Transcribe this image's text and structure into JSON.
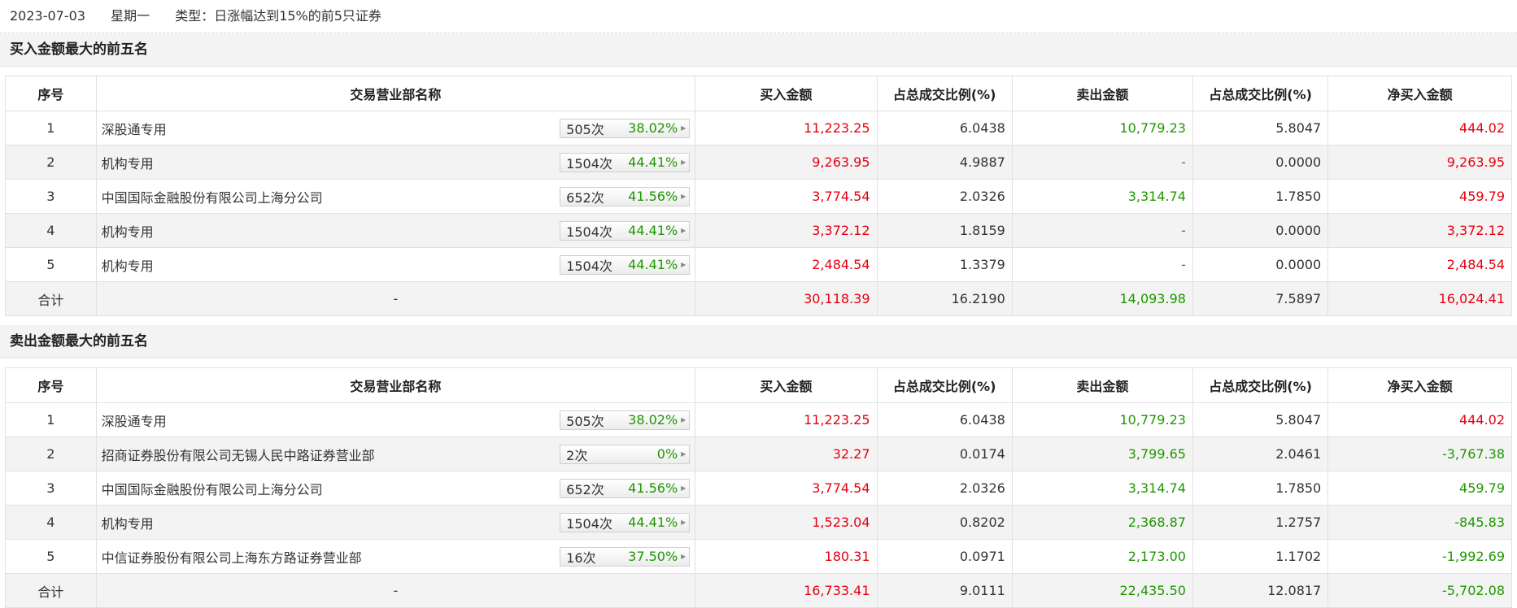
{
  "info": {
    "date": "2023-07-03",
    "weekday": "星期一",
    "type_label": "类型：日涨幅达到15%的前5只证券"
  },
  "headers": [
    "序号",
    "交易营业部名称",
    "买入金额",
    "占总成交比例(%)",
    "卖出金额",
    "占总成交比例(%)",
    "净买入金额"
  ],
  "sections": [
    {
      "title": "买入金额最大的前五名",
      "rows": [
        {
          "idx": "1",
          "name": "深股通专用",
          "count": "505次",
          "pct": "38.02%",
          "buy": "11,223.25",
          "buy_ratio": "6.0438",
          "sell": "10,779.23",
          "sell_ratio": "5.8047",
          "net": "444.02",
          "net_color": "red"
        },
        {
          "idx": "2",
          "name": "机构专用",
          "count": "1504次",
          "pct": "44.41%",
          "buy": "9,263.95",
          "buy_ratio": "4.9887",
          "sell": "-",
          "sell_ratio": "0.0000",
          "net": "9,263.95",
          "net_color": "red"
        },
        {
          "idx": "3",
          "name": "中国国际金融股份有限公司上海分公司",
          "count": "652次",
          "pct": "41.56%",
          "buy": "3,774.54",
          "buy_ratio": "2.0326",
          "sell": "3,314.74",
          "sell_ratio": "1.7850",
          "net": "459.79",
          "net_color": "red"
        },
        {
          "idx": "4",
          "name": "机构专用",
          "count": "1504次",
          "pct": "44.41%",
          "buy": "3,372.12",
          "buy_ratio": "1.8159",
          "sell": "-",
          "sell_ratio": "0.0000",
          "net": "3,372.12",
          "net_color": "red"
        },
        {
          "idx": "5",
          "name": "机构专用",
          "count": "1504次",
          "pct": "44.41%",
          "buy": "2,484.54",
          "buy_ratio": "1.3379",
          "sell": "-",
          "sell_ratio": "0.0000",
          "net": "2,484.54",
          "net_color": "red"
        }
      ],
      "total": {
        "label": "合计",
        "name": "-",
        "buy": "30,118.39",
        "buy_ratio": "16.2190",
        "sell": "14,093.98",
        "sell_ratio": "7.5897",
        "net": "16,024.41",
        "net_color": "red"
      }
    },
    {
      "title": "卖出金额最大的前五名",
      "rows": [
        {
          "idx": "1",
          "name": "深股通专用",
          "count": "505次",
          "pct": "38.02%",
          "buy": "11,223.25",
          "buy_ratio": "6.0438",
          "sell": "10,779.23",
          "sell_ratio": "5.8047",
          "net": "444.02",
          "net_color": "red"
        },
        {
          "idx": "2",
          "name": "招商证券股份有限公司无锡人民中路证券营业部",
          "count": "2次",
          "pct": "0%",
          "buy": "32.27",
          "buy_ratio": "0.0174",
          "sell": "3,799.65",
          "sell_ratio": "2.0461",
          "net": "-3,767.38",
          "net_color": "green"
        },
        {
          "idx": "3",
          "name": "中国国际金融股份有限公司上海分公司",
          "count": "652次",
          "pct": "41.56%",
          "buy": "3,774.54",
          "buy_ratio": "2.0326",
          "sell": "3,314.74",
          "sell_ratio": "1.7850",
          "net": "459.79",
          "net_color": "green"
        },
        {
          "idx": "4",
          "name": "机构专用",
          "count": "1504次",
          "pct": "44.41%",
          "buy": "1,523.04",
          "buy_ratio": "0.8202",
          "sell": "2,368.87",
          "sell_ratio": "1.2757",
          "net": "-845.83",
          "net_color": "green"
        },
        {
          "idx": "5",
          "name": "中信证券股份有限公司上海东方路证券营业部",
          "count": "16次",
          "pct": "37.50%",
          "buy": "180.31",
          "buy_ratio": "0.0971",
          "sell": "2,173.00",
          "sell_ratio": "1.1702",
          "net": "-1,992.69",
          "net_color": "green"
        }
      ],
      "total": {
        "label": "合计",
        "name": "-",
        "buy": "16,733.41",
        "buy_ratio": "9.0111",
        "sell": "22,435.50",
        "sell_ratio": "12.0817",
        "net": "-5,702.08",
        "net_color": "green"
      }
    }
  ],
  "colors": {
    "buy": "#e4000f",
    "sell": "#1f9700",
    "badge_pct": "#1f9700",
    "row_alt": "#f3f3f3"
  }
}
